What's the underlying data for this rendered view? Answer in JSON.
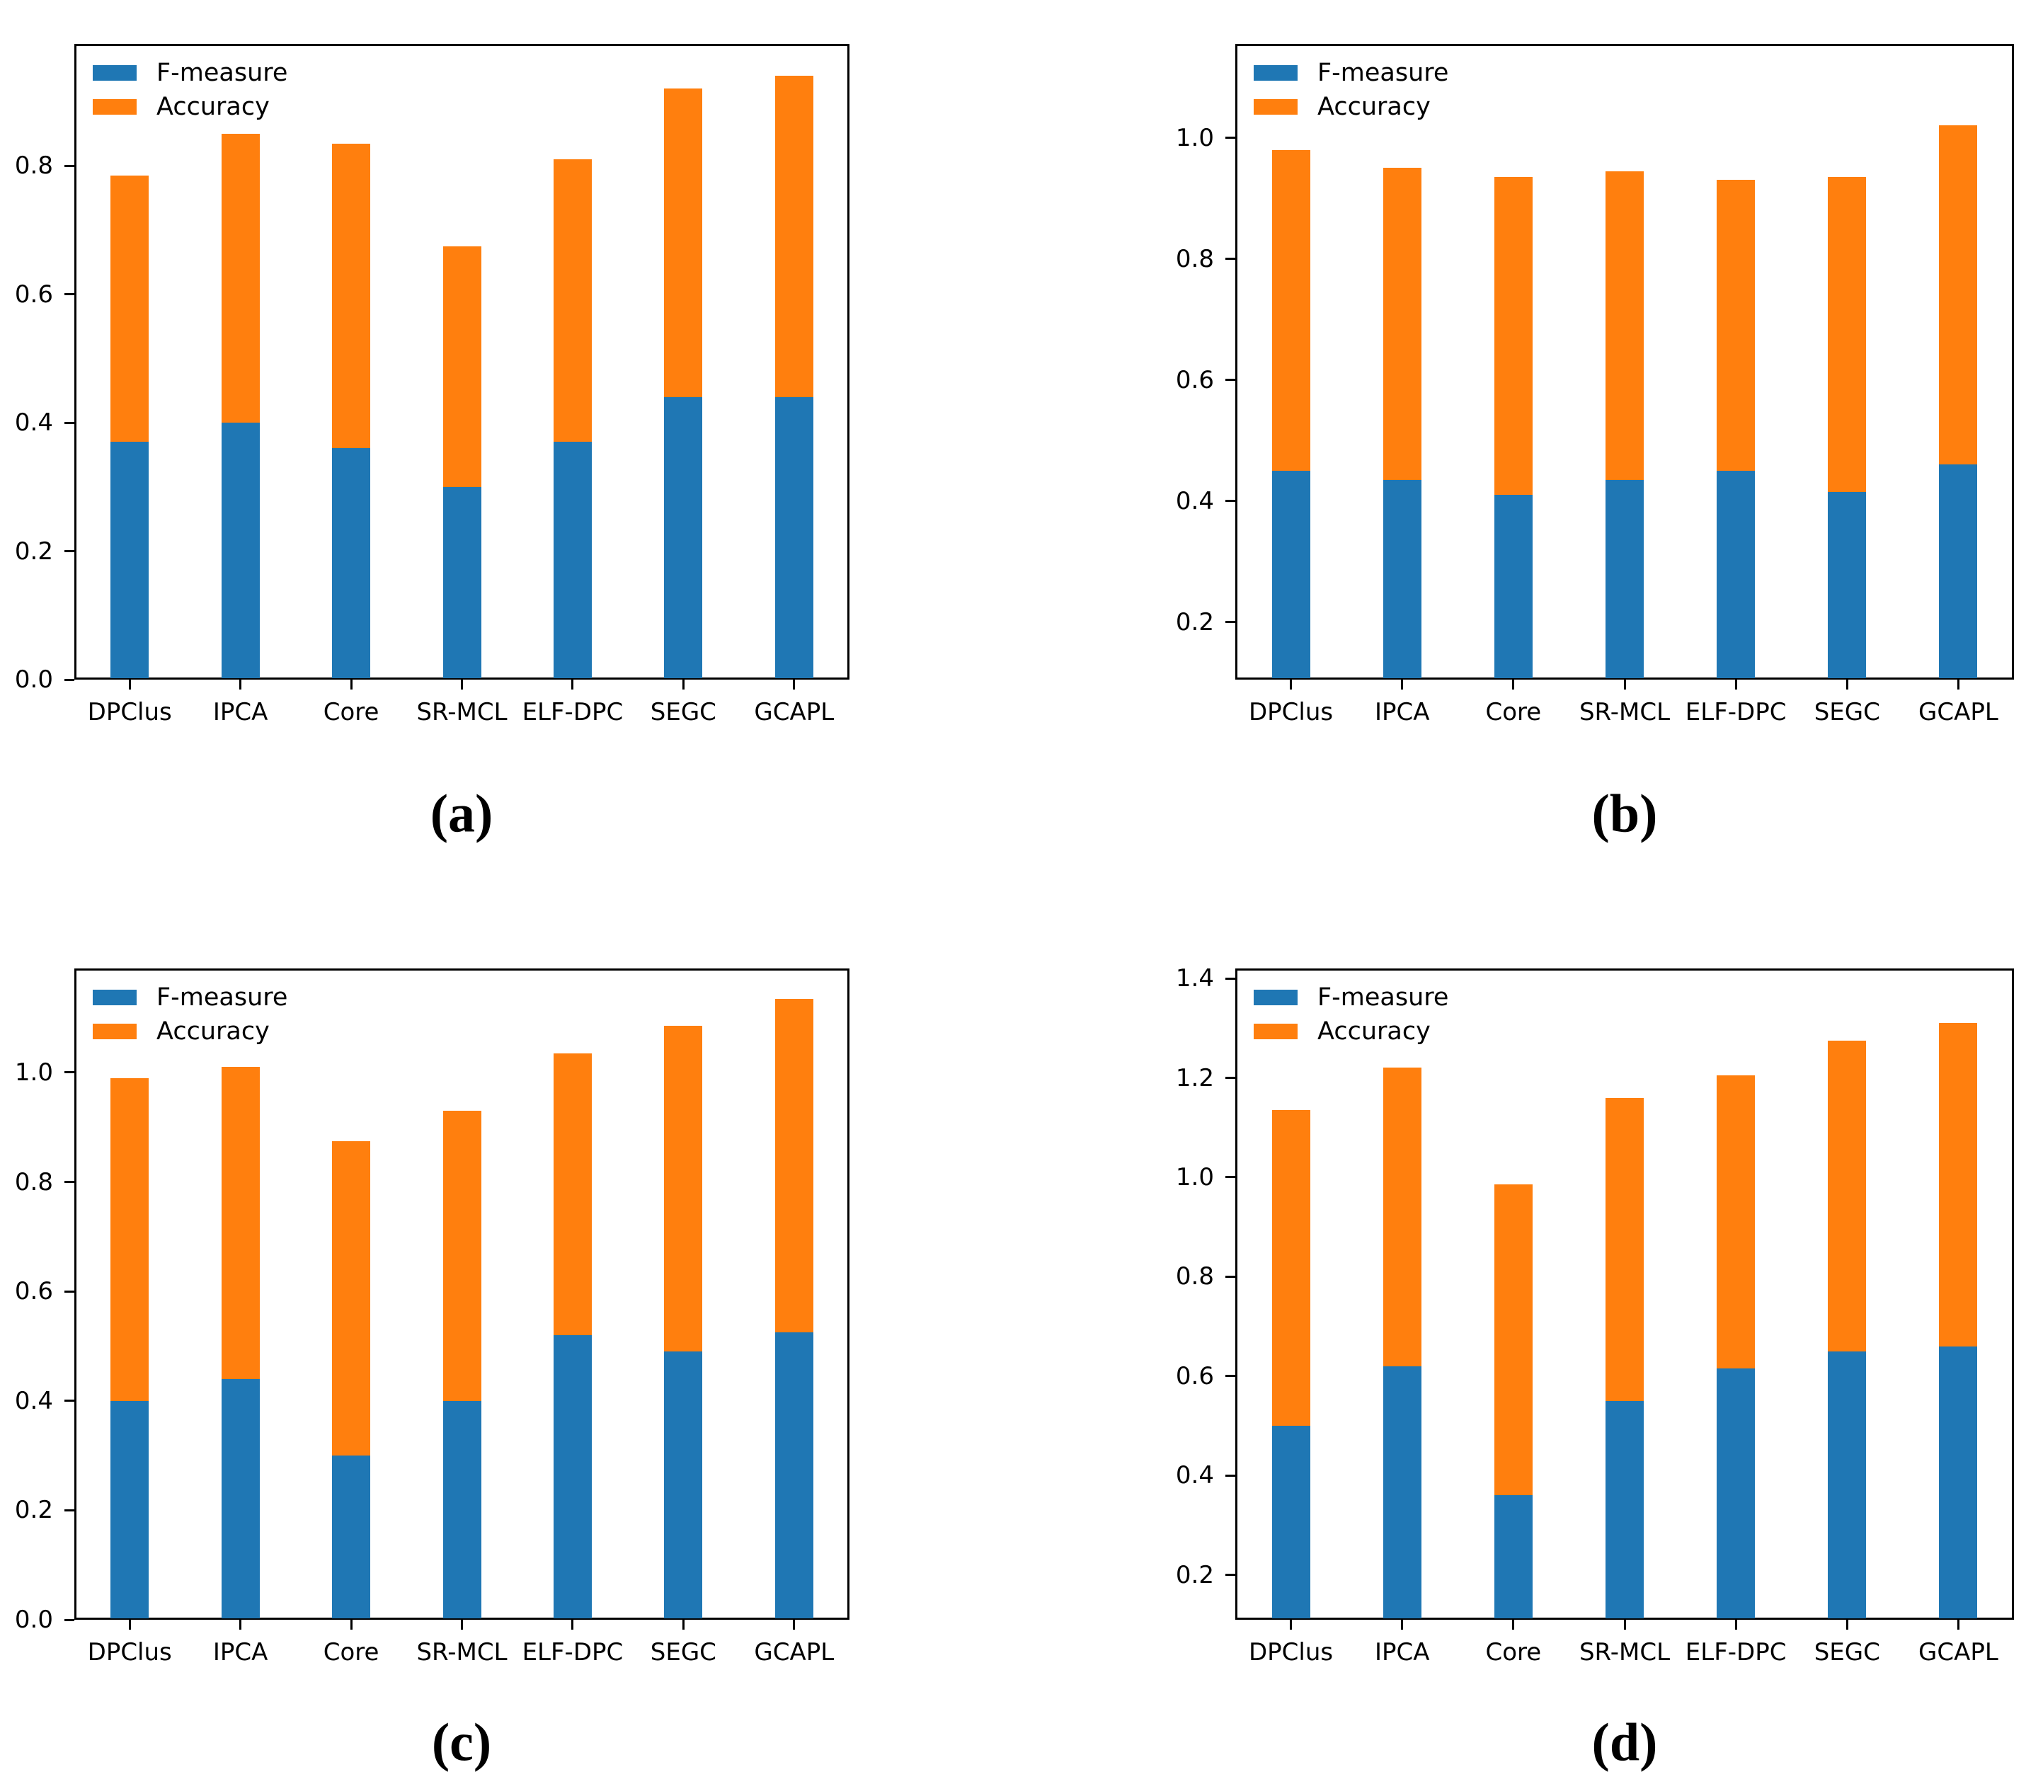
{
  "figure": {
    "background": "#ffffff",
    "panel_captions": [
      "(a)",
      "(b)",
      "(c)",
      "(d)"
    ]
  },
  "colors": {
    "f_measure": "#1f77b4",
    "accuracy": "#ff7f0e",
    "axis": "#000000",
    "text": "#000000"
  },
  "legend": {
    "entries": [
      "F-measure",
      "Accuracy"
    ],
    "position": "upper-left",
    "frame": false
  },
  "chart_data": [
    {
      "id": "a",
      "caption": "(a)",
      "type": "bar",
      "stacked": true,
      "grid": false,
      "legend_position": "upper-left",
      "categories": [
        "DPClus",
        "IPCA",
        "Core",
        "SR-MCL",
        "ELF-DPC",
        "SEGC",
        "GCAPL"
      ],
      "series": [
        {
          "name": "F-measure",
          "color": "#1f77b4",
          "values": [
            0.37,
            0.4,
            0.36,
            0.3,
            0.37,
            0.44,
            0.44
          ]
        },
        {
          "name": "Accuracy",
          "color": "#ff7f0e",
          "values": [
            0.415,
            0.45,
            0.475,
            0.375,
            0.44,
            0.48,
            0.5
          ]
        }
      ],
      "stack_totals": [
        0.785,
        0.85,
        0.835,
        0.675,
        0.81,
        0.92,
        0.94
      ],
      "xlabel": "",
      "ylabel": "",
      "ylim": [
        0.0,
        0.99
      ],
      "yticks": [
        0.0,
        0.2,
        0.4,
        0.6,
        0.8
      ]
    },
    {
      "id": "b",
      "caption": "(b)",
      "type": "bar",
      "stacked": true,
      "grid": false,
      "legend_position": "upper-left",
      "categories": [
        "DPClus",
        "IPCA",
        "Core",
        "SR-MCL",
        "ELF-DPC",
        "SEGC",
        "GCAPL"
      ],
      "series": [
        {
          "name": "F-measure",
          "color": "#1f77b4",
          "values": [
            0.45,
            0.435,
            0.41,
            0.435,
            0.45,
            0.415,
            0.46
          ]
        },
        {
          "name": "Accuracy",
          "color": "#ff7f0e",
          "values": [
            0.53,
            0.515,
            0.525,
            0.51,
            0.48,
            0.52,
            0.56
          ]
        }
      ],
      "stack_totals": [
        0.98,
        0.95,
        0.935,
        0.945,
        0.93,
        0.935,
        1.02
      ],
      "xlabel": "",
      "ylabel": "",
      "ylim": [
        0.105,
        1.155
      ],
      "yticks": [
        0.2,
        0.4,
        0.6,
        0.8,
        1.0
      ]
    },
    {
      "id": "c",
      "caption": "(c)",
      "type": "bar",
      "stacked": true,
      "grid": false,
      "legend_position": "upper-left",
      "categories": [
        "DPClus",
        "IPCA",
        "Core",
        "SR-MCL",
        "ELF-DPC",
        "SEGC",
        "GCAPL"
      ],
      "series": [
        {
          "name": "F-measure",
          "color": "#1f77b4",
          "values": [
            0.4,
            0.44,
            0.3,
            0.4,
            0.52,
            0.49,
            0.525
          ]
        },
        {
          "name": "Accuracy",
          "color": "#ff7f0e",
          "values": [
            0.59,
            0.57,
            0.575,
            0.53,
            0.515,
            0.595,
            0.61
          ]
        }
      ],
      "stack_totals": [
        0.99,
        1.01,
        0.875,
        0.93,
        1.035,
        1.085,
        1.135
      ],
      "xlabel": "",
      "ylabel": "",
      "ylim": [
        0.0,
        1.19
      ],
      "yticks": [
        0.0,
        0.2,
        0.4,
        0.6,
        0.8,
        1.0
      ]
    },
    {
      "id": "d",
      "caption": "(d)",
      "type": "bar",
      "stacked": true,
      "grid": false,
      "legend_position": "upper-left",
      "categories": [
        "DPClus",
        "IPCA",
        "Core",
        "SR-MCL",
        "ELF-DPC",
        "SEGC",
        "GCAPL"
      ],
      "series": [
        {
          "name": "F-measure",
          "color": "#1f77b4",
          "values": [
            0.5,
            0.62,
            0.36,
            0.55,
            0.615,
            0.65,
            0.66
          ]
        },
        {
          "name": "Accuracy",
          "color": "#ff7f0e",
          "values": [
            0.635,
            0.6,
            0.625,
            0.61,
            0.59,
            0.625,
            0.65
          ]
        }
      ],
      "stack_totals": [
        1.135,
        1.22,
        0.985,
        1.16,
        1.205,
        1.275,
        1.31
      ],
      "xlabel": "",
      "ylabel": "",
      "ylim": [
        0.11,
        1.42
      ],
      "yticks": [
        0.2,
        0.4,
        0.6,
        0.8,
        1.0,
        1.2,
        1.4
      ]
    }
  ]
}
